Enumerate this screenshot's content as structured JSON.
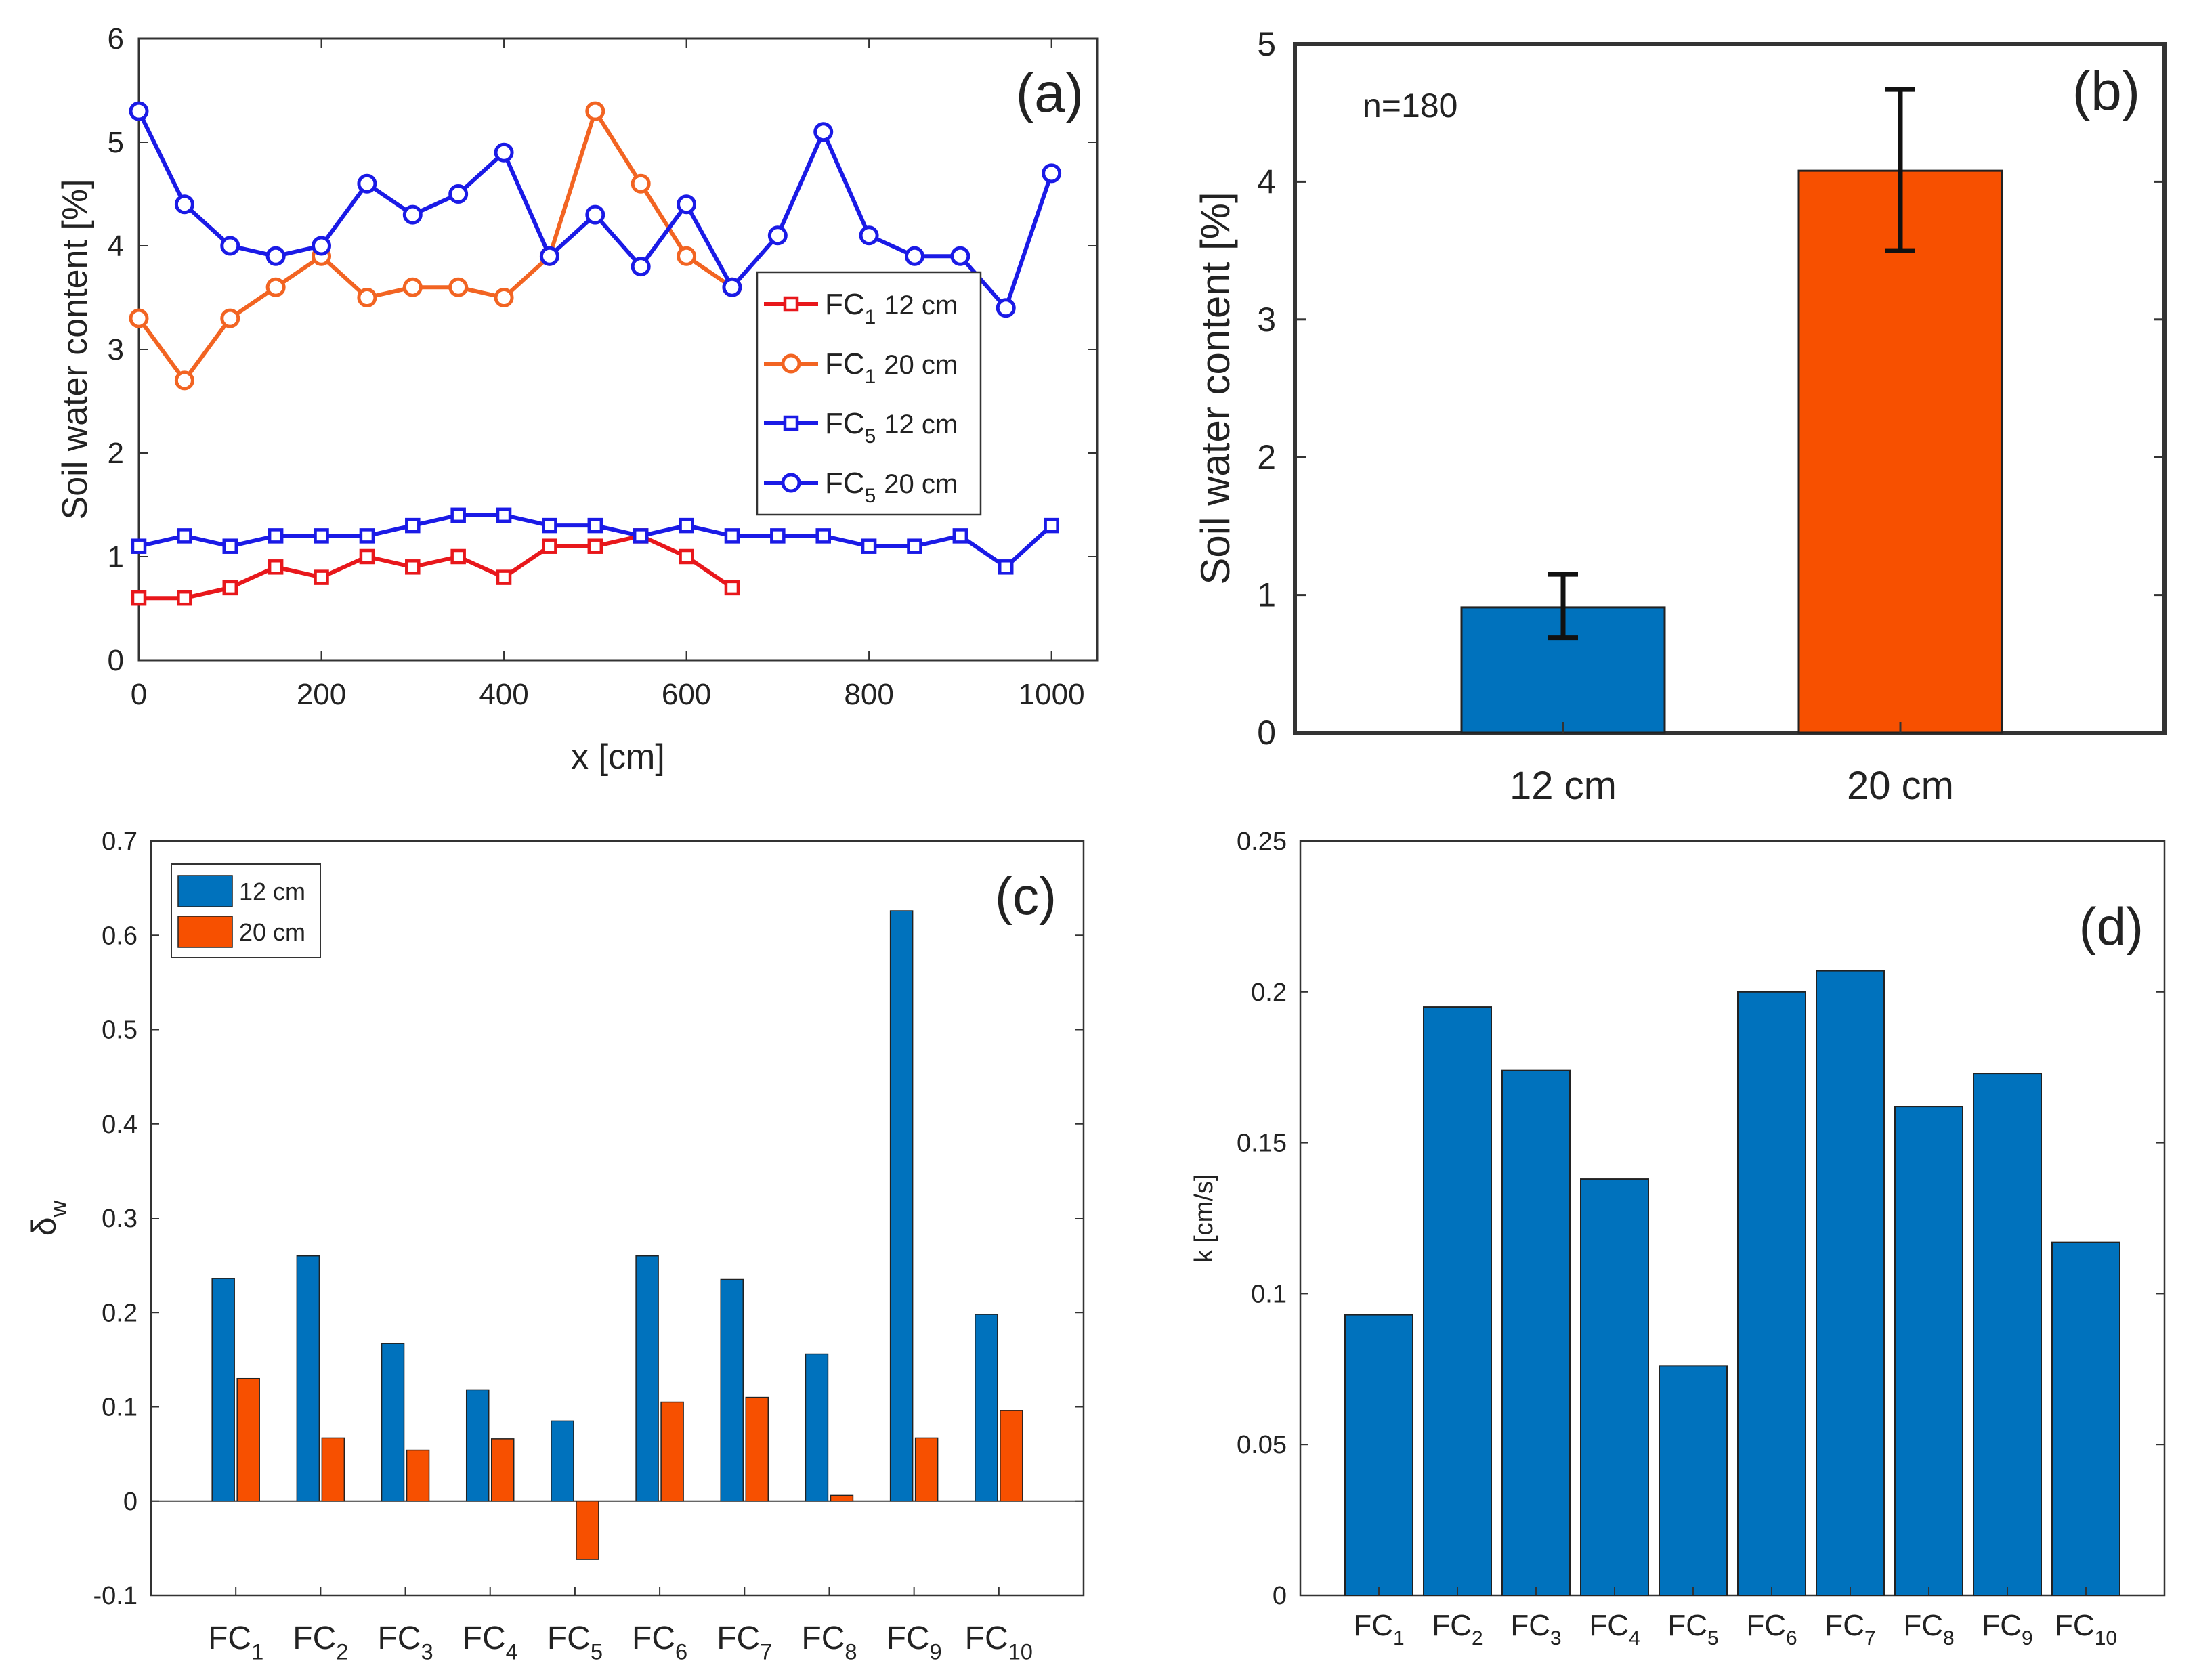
{
  "chart_data": [
    {
      "type": "line",
      "panel_label": "(a)",
      "xlabel": "x [cm]",
      "ylabel": "Soil water content [%]",
      "xlim": [
        0,
        1050
      ],
      "ylim": [
        0,
        6
      ],
      "xticks": [
        0,
        200,
        400,
        600,
        800,
        1000
      ],
      "xtick_labels": [
        "0",
        "200",
        "400",
        "600",
        "800",
        "1000"
      ],
      "yticks": [
        0,
        1,
        2,
        3,
        4,
        5,
        6
      ],
      "ytick_labels": [
        "0",
        "1",
        "2",
        "3",
        "4",
        "5",
        "6"
      ],
      "legend_position": "center-right",
      "series": [
        {
          "name": "FC",
          "sub": "1",
          "depth": "12 cm",
          "color": "#e8171b",
          "marker": "square",
          "x": [
            0,
            50,
            100,
            150,
            200,
            250,
            300,
            350,
            400,
            450,
            500,
            550,
            600,
            650
          ],
          "values": [
            0.6,
            0.6,
            0.7,
            0.9,
            0.8,
            1.0,
            0.9,
            1.0,
            0.8,
            1.1,
            1.1,
            1.2,
            1.0,
            0.7
          ]
        },
        {
          "name": "FC",
          "sub": "1",
          "depth": "20 cm",
          "color": "#f26422",
          "marker": "circle",
          "x": [
            0,
            50,
            100,
            150,
            200,
            250,
            300,
            350,
            400,
            450,
            500,
            550,
            600,
            650
          ],
          "values": [
            3.3,
            2.7,
            3.3,
            3.6,
            3.9,
            3.5,
            3.6,
            3.6,
            3.5,
            3.9,
            5.3,
            4.6,
            3.9,
            3.6
          ]
        },
        {
          "name": "FC",
          "sub": "5",
          "depth": "12 cm",
          "color": "#1a1ae6",
          "marker": "square",
          "x": [
            0,
            50,
            100,
            150,
            200,
            250,
            300,
            350,
            400,
            450,
            500,
            550,
            600,
            650,
            700,
            750,
            800,
            850,
            900,
            950,
            1000
          ],
          "values": [
            1.1,
            1.2,
            1.1,
            1.2,
            1.2,
            1.2,
            1.3,
            1.4,
            1.4,
            1.3,
            1.3,
            1.2,
            1.3,
            1.2,
            1.2,
            1.2,
            1.1,
            1.1,
            1.2,
            0.9,
            1.3
          ]
        },
        {
          "name": "FC",
          "sub": "5",
          "depth": "20 cm",
          "color": "#1a1ae6",
          "marker": "circle",
          "x": [
            0,
            50,
            100,
            150,
            200,
            250,
            300,
            350,
            400,
            450,
            500,
            550,
            600,
            650,
            700,
            750,
            800,
            850,
            900,
            950,
            1000
          ],
          "values": [
            5.3,
            4.4,
            4.0,
            3.9,
            4.0,
            4.6,
            4.3,
            4.5,
            4.9,
            3.9,
            4.3,
            3.8,
            4.4,
            3.6,
            4.1,
            5.1,
            4.1,
            3.9,
            3.9,
            3.4,
            4.7
          ]
        }
      ]
    },
    {
      "type": "bar",
      "panel_label": "(b)",
      "annotation": "n=180",
      "ylabel": "Soil water content [%]",
      "ylim": [
        0,
        5
      ],
      "yticks": [
        0,
        1,
        2,
        3,
        4,
        5
      ],
      "ytick_labels": [
        "0",
        "1",
        "2",
        "3",
        "4",
        "5"
      ],
      "categories": [
        "12 cm",
        "20 cm"
      ],
      "values": [
        0.91,
        4.08
      ],
      "error_low": [
        0.69,
        3.5
      ],
      "error_high": [
        1.15,
        4.67
      ],
      "colors": [
        "#0072bd",
        "#f75000"
      ]
    },
    {
      "type": "bar",
      "panel_label": "(c)",
      "ylabel": "δ",
      "ylabel_sub": "w",
      "ylim": [
        -0.1,
        0.7
      ],
      "yticks": [
        -0.1,
        0,
        0.1,
        0.2,
        0.3,
        0.4,
        0.5,
        0.6,
        0.7
      ],
      "ytick_labels": [
        "-0.1",
        "0",
        "0.1",
        "0.2",
        "0.3",
        "0.4",
        "0.5",
        "0.6",
        "0.7"
      ],
      "categories": [
        "FC",
        "FC",
        "FC",
        "FC",
        "FC",
        "FC",
        "FC",
        "FC",
        "FC",
        "FC"
      ],
      "category_subs": [
        "1",
        "2",
        "3",
        "4",
        "5",
        "6",
        "7",
        "8",
        "9",
        "10"
      ],
      "legend_position": "top-left",
      "series": [
        {
          "name": "12 cm",
          "color": "#0072bd",
          "values": [
            0.236,
            0.26,
            0.167,
            0.118,
            0.085,
            0.26,
            0.235,
            0.156,
            0.626,
            0.198
          ]
        },
        {
          "name": "20 cm",
          "color": "#f75000",
          "values": [
            0.13,
            0.067,
            0.054,
            0.066,
            -0.062,
            0.105,
            0.11,
            0.006,
            0.067,
            0.096
          ]
        }
      ]
    },
    {
      "type": "bar",
      "panel_label": "(d)",
      "ylabel": "k [cm/s]",
      "ylim": [
        0,
        0.25
      ],
      "yticks": [
        0,
        0.05,
        0.1,
        0.15,
        0.2,
        0.25
      ],
      "ytick_labels": [
        "0",
        "0.05",
        "0.1",
        "0.15",
        "0.2",
        "0.25"
      ],
      "categories": [
        "FC",
        "FC",
        "FC",
        "FC",
        "FC",
        "FC",
        "FC",
        "FC",
        "FC",
        "FC"
      ],
      "category_subs": [
        "1",
        "2",
        "3",
        "4",
        "5",
        "6",
        "7",
        "8",
        "9",
        "10"
      ],
      "color": "#0072bd",
      "values": [
        0.093,
        0.195,
        0.174,
        0.138,
        0.076,
        0.2,
        0.207,
        0.162,
        0.173,
        0.117
      ]
    }
  ]
}
